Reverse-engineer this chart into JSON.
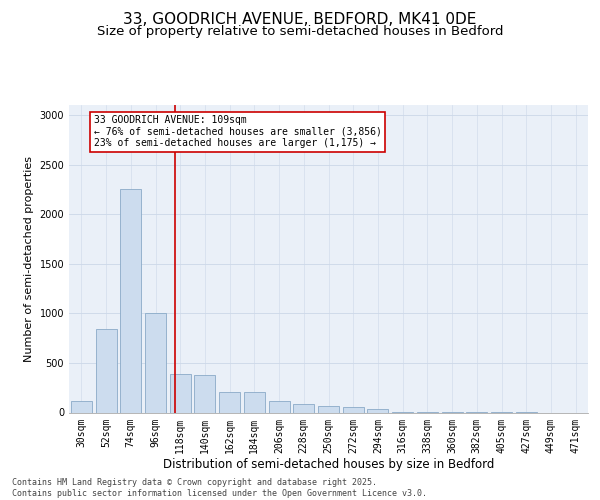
{
  "title_line1": "33, GOODRICH AVENUE, BEDFORD, MK41 0DE",
  "title_line2": "Size of property relative to semi-detached houses in Bedford",
  "xlabel": "Distribution of semi-detached houses by size in Bedford",
  "ylabel": "Number of semi-detached properties",
  "categories": [
    "30sqm",
    "52sqm",
    "74sqm",
    "96sqm",
    "118sqm",
    "140sqm",
    "162sqm",
    "184sqm",
    "206sqm",
    "228sqm",
    "250sqm",
    "272sqm",
    "294sqm",
    "316sqm",
    "338sqm",
    "360sqm",
    "382sqm",
    "405sqm",
    "427sqm",
    "449sqm",
    "471sqm"
  ],
  "values": [
    120,
    840,
    2250,
    1000,
    390,
    380,
    210,
    205,
    120,
    90,
    65,
    55,
    38,
    10,
    5,
    3,
    2,
    1,
    1,
    0,
    0
  ],
  "bar_color": "#ccdcee",
  "bar_edge_color": "#8aaac8",
  "grid_color": "#ccd8e8",
  "background_color": "#eaf0f8",
  "vline_x_idx": 3.78,
  "vline_color": "#cc0000",
  "annotation_text": "33 GOODRICH AVENUE: 109sqm\n← 76% of semi-detached houses are smaller (3,856)\n23% of semi-detached houses are larger (1,175) →",
  "annotation_box_color": "#ffffff",
  "annotation_box_edge": "#cc0000",
  "footer_text": "Contains HM Land Registry data © Crown copyright and database right 2025.\nContains public sector information licensed under the Open Government Licence v3.0.",
  "ylim": [
    0,
    3100
  ],
  "yticks": [
    0,
    500,
    1000,
    1500,
    2000,
    2500,
    3000
  ],
  "title_fontsize": 11,
  "subtitle_fontsize": 9.5,
  "axis_label_fontsize": 8,
  "tick_fontsize": 7,
  "annotation_fontsize": 7,
  "footer_fontsize": 6
}
